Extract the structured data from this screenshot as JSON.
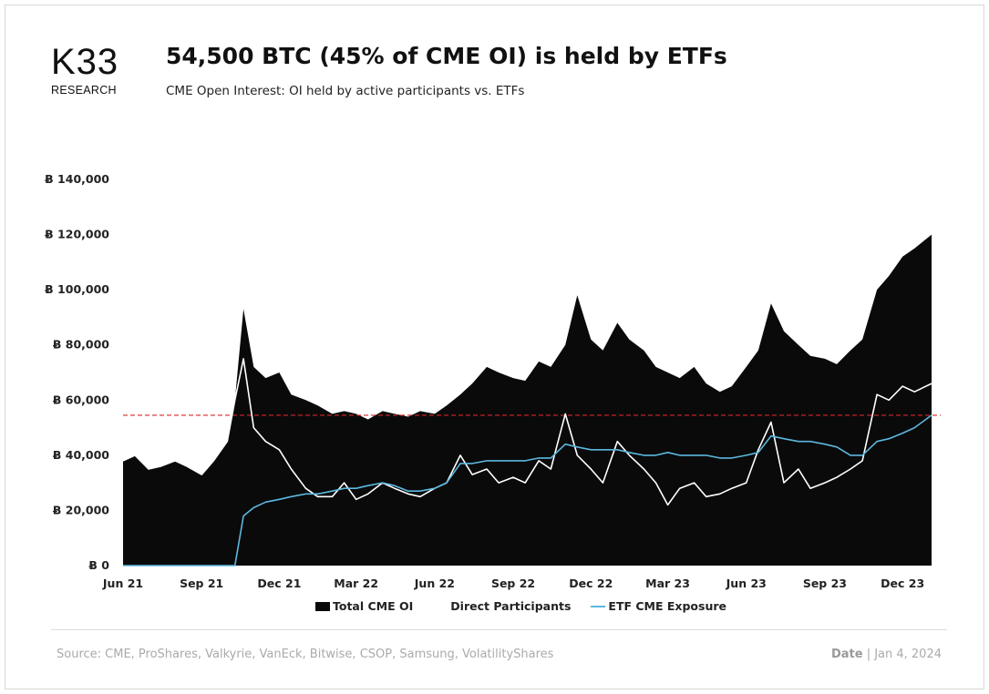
{
  "header": {
    "logo_main": "K33",
    "logo_sub": "RESEARCH",
    "title": "54,500 BTC (45% of CME OI) is held by ETFs",
    "subtitle": "CME Open Interest: OI held by active participants vs. ETFs"
  },
  "footer": {
    "source": "Source: CME, ProShares, Valkyrie, VanEck, Bitwise, CSOP, Samsung, VolatilityShares",
    "date_label": "Date",
    "date_value": "| Jan 4, 2024"
  },
  "chart_data": {
    "type": "area",
    "title": "54,500 BTC (45% of CME OI) is held by ETFs",
    "xlabel": "",
    "ylabel": "",
    "ylim": [
      0,
      140000
    ],
    "yticks": [
      "Ƀ 0",
      "Ƀ 20,000",
      "Ƀ 40,000",
      "Ƀ 60,000",
      "Ƀ 80,000",
      "Ƀ 100,000",
      "Ƀ 120,000",
      "Ƀ 140,000"
    ],
    "xticks": [
      "Jun 21",
      "Sep 21",
      "Dec 21",
      "Mar 22",
      "Jun 22",
      "Sep 22",
      "Dec 22",
      "Mar 23",
      "Jun 23",
      "Sep 23",
      "Dec 23"
    ],
    "legend_position": "bottom",
    "reference_line": {
      "value": 54500,
      "color": "#d62728",
      "style": "dashed"
    },
    "x": [
      "2021-06-01",
      "2021-06-15",
      "2021-07-01",
      "2021-07-15",
      "2021-08-01",
      "2021-08-15",
      "2021-09-01",
      "2021-09-15",
      "2021-10-01",
      "2021-10-10",
      "2021-10-20",
      "2021-11-01",
      "2021-11-15",
      "2021-12-01",
      "2021-12-15",
      "2022-01-01",
      "2022-01-15",
      "2022-02-01",
      "2022-02-15",
      "2022-03-01",
      "2022-03-15",
      "2022-04-01",
      "2022-04-15",
      "2022-05-01",
      "2022-05-15",
      "2022-06-01",
      "2022-06-15",
      "2022-07-01",
      "2022-07-15",
      "2022-08-01",
      "2022-08-15",
      "2022-09-01",
      "2022-09-15",
      "2022-10-01",
      "2022-10-15",
      "2022-11-01",
      "2022-11-15",
      "2022-12-01",
      "2022-12-15",
      "2023-01-01",
      "2023-01-15",
      "2023-02-01",
      "2023-02-15",
      "2023-03-01",
      "2023-03-15",
      "2023-04-01",
      "2023-04-15",
      "2023-05-01",
      "2023-05-15",
      "2023-06-01",
      "2023-06-15",
      "2023-06-30",
      "2023-07-15",
      "2023-08-01",
      "2023-08-15",
      "2023-09-01",
      "2023-09-15",
      "2023-10-01",
      "2023-10-15",
      "2023-11-01",
      "2023-11-15",
      "2023-12-01",
      "2023-12-15",
      "2024-01-04"
    ],
    "series": [
      {
        "name": "Total CME OI",
        "color": "#0a0a0a",
        "values": [
          38000,
          40000,
          35000,
          36000,
          38000,
          36000,
          33000,
          38000,
          45000,
          60000,
          93000,
          72000,
          68000,
          70000,
          62000,
          60000,
          58000,
          55000,
          56000,
          55000,
          53000,
          56000,
          55000,
          54000,
          56000,
          55000,
          58000,
          62000,
          66000,
          72000,
          70000,
          68000,
          67000,
          74000,
          72000,
          80000,
          98000,
          82000,
          78000,
          88000,
          82000,
          78000,
          72000,
          70000,
          68000,
          72000,
          66000,
          63000,
          65000,
          72000,
          78000,
          95000,
          85000,
          80000,
          76000,
          75000,
          73000,
          78000,
          82000,
          100000,
          105000,
          112000,
          115000,
          120000
        ]
      },
      {
        "name": "Direct Participants",
        "color": "#ffffff",
        "values": [
          38000,
          40000,
          35000,
          36000,
          38000,
          36000,
          33000,
          38000,
          45000,
          60000,
          75000,
          50000,
          45000,
          42000,
          35000,
          28000,
          25000,
          25000,
          30000,
          24000,
          26000,
          30000,
          28000,
          26000,
          25000,
          28000,
          30000,
          40000,
          33000,
          35000,
          30000,
          32000,
          30000,
          38000,
          35000,
          55000,
          40000,
          35000,
          30000,
          45000,
          40000,
          35000,
          30000,
          22000,
          28000,
          30000,
          25000,
          26000,
          28000,
          30000,
          42000,
          52000,
          30000,
          35000,
          28000,
          30000,
          32000,
          35000,
          38000,
          62000,
          60000,
          65000,
          63000,
          66000
        ]
      },
      {
        "name": "ETF CME Exposure",
        "color": "#5bb8e0",
        "values": [
          0,
          0,
          0,
          0,
          0,
          0,
          0,
          0,
          0,
          0,
          18000,
          21000,
          23000,
          24000,
          25000,
          26000,
          26000,
          27000,
          28000,
          28000,
          29000,
          30000,
          29000,
          27000,
          27000,
          28000,
          30000,
          37000,
          37000,
          38000,
          38000,
          38000,
          38000,
          39000,
          39000,
          44000,
          43000,
          42000,
          42000,
          42000,
          41000,
          40000,
          40000,
          41000,
          40000,
          40000,
          40000,
          39000,
          39000,
          40000,
          41000,
          47000,
          46000,
          45000,
          45000,
          44000,
          43000,
          40000,
          40000,
          45000,
          46000,
          48000,
          50000,
          54500
        ]
      }
    ]
  }
}
